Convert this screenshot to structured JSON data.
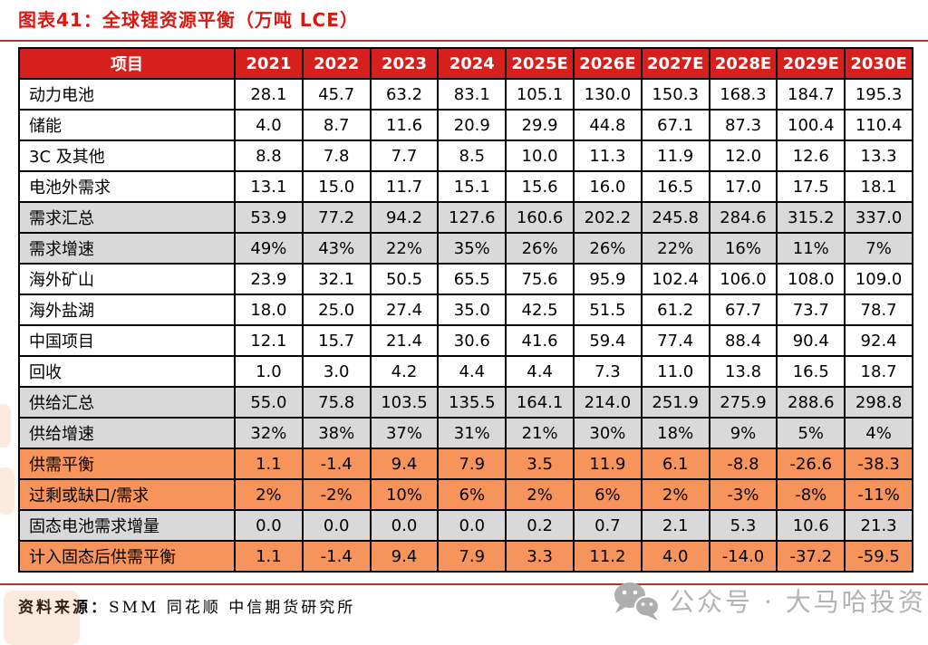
{
  "header": {
    "title": "图表41：全球锂资源平衡（万吨 LCE）"
  },
  "footer": {
    "source_label": "资料来源：",
    "source_text": "SMM 同花顺 中信期货研究所"
  },
  "watermark": {
    "icon": "wechat-icon",
    "text": "公众号 · 大马哈投资"
  },
  "colors": {
    "title_red": "#DB1712",
    "header_red": "#D6201E",
    "rule_red": "#A23A30",
    "row_gray": "#D9D9D9",
    "row_orange": "#F6945C",
    "watermark_gray": "#B3B3B3"
  },
  "chart_data": {
    "type": "table",
    "title": "图表41：全球锂资源平衡（万吨 LCE）",
    "unit": "万吨 LCE",
    "columns": [
      "项目",
      "2021",
      "2022",
      "2023",
      "2024",
      "2025E",
      "2026E",
      "2027E",
      "2028E",
      "2029E",
      "2030E"
    ],
    "rows": [
      {
        "label": "动力电池",
        "style": "plain",
        "values": [
          "28.1",
          "45.7",
          "63.2",
          "83.1",
          "105.1",
          "130.0",
          "150.3",
          "168.3",
          "184.7",
          "195.3"
        ]
      },
      {
        "label": "储能",
        "style": "plain",
        "values": [
          "4.0",
          "8.7",
          "11.6",
          "20.9",
          "29.9",
          "44.8",
          "67.1",
          "87.3",
          "100.4",
          "110.4"
        ]
      },
      {
        "label": "3C 及其他",
        "style": "plain",
        "values": [
          "8.8",
          "7.8",
          "7.7",
          "8.5",
          "10.0",
          "11.3",
          "11.9",
          "12.0",
          "12.6",
          "13.3"
        ]
      },
      {
        "label": "电池外需求",
        "style": "plain",
        "values": [
          "13.1",
          "15.0",
          "11.7",
          "15.1",
          "15.6",
          "16.0",
          "16.5",
          "17.0",
          "17.5",
          "18.1"
        ]
      },
      {
        "label": "需求汇总",
        "style": "gray",
        "values": [
          "53.9",
          "77.2",
          "94.2",
          "127.6",
          "160.6",
          "202.2",
          "245.8",
          "284.6",
          "315.2",
          "337.0"
        ]
      },
      {
        "label": "需求增速",
        "style": "gray",
        "values": [
          "49%",
          "43%",
          "22%",
          "35%",
          "26%",
          "26%",
          "22%",
          "16%",
          "11%",
          "7%"
        ]
      },
      {
        "label": "海外矿山",
        "style": "plain",
        "values": [
          "23.9",
          "32.1",
          "50.5",
          "65.5",
          "75.6",
          "95.9",
          "102.4",
          "106.0",
          "108.0",
          "109.0"
        ]
      },
      {
        "label": "海外盐湖",
        "style": "plain",
        "values": [
          "18.0",
          "25.0",
          "27.4",
          "35.0",
          "42.5",
          "51.5",
          "61.2",
          "67.7",
          "73.7",
          "78.7"
        ]
      },
      {
        "label": "中国项目",
        "style": "plain",
        "values": [
          "12.1",
          "15.7",
          "21.4",
          "30.6",
          "41.6",
          "59.4",
          "77.4",
          "88.4",
          "90.4",
          "92.4"
        ]
      },
      {
        "label": "回收",
        "style": "plain",
        "values": [
          "1.0",
          "3.0",
          "4.2",
          "4.4",
          "4.4",
          "7.3",
          "11.0",
          "13.8",
          "16.5",
          "18.7"
        ]
      },
      {
        "label": "供给汇总",
        "style": "gray",
        "values": [
          "55.0",
          "75.8",
          "103.5",
          "135.5",
          "164.1",
          "214.0",
          "251.9",
          "275.9",
          "288.6",
          "298.8"
        ]
      },
      {
        "label": "供给增速",
        "style": "gray",
        "values": [
          "32%",
          "38%",
          "37%",
          "31%",
          "21%",
          "30%",
          "18%",
          "9%",
          "5%",
          "4%"
        ]
      },
      {
        "label": "供需平衡",
        "style": "orange",
        "values": [
          "1.1",
          "-1.4",
          "9.4",
          "7.9",
          "3.5",
          "11.9",
          "6.1",
          "-8.8",
          "-26.6",
          "-38.3"
        ]
      },
      {
        "label": "过剩或缺口/需求",
        "style": "orange",
        "values": [
          "2%",
          "-2%",
          "10%",
          "6%",
          "2%",
          "6%",
          "2%",
          "-3%",
          "-8%",
          "-11%"
        ]
      },
      {
        "label": "固态电池需求增量",
        "style": "gray",
        "values": [
          "0.0",
          "0.0",
          "0.0",
          "0.0",
          "0.2",
          "0.7",
          "2.1",
          "5.3",
          "10.6",
          "21.3"
        ]
      },
      {
        "label": "计入固态后供需平衡",
        "style": "orange",
        "values": [
          "1.1",
          "-1.4",
          "9.4",
          "7.9",
          "3.3",
          "11.2",
          "4.0",
          "-14.0",
          "-37.2",
          "-59.5"
        ]
      }
    ]
  }
}
